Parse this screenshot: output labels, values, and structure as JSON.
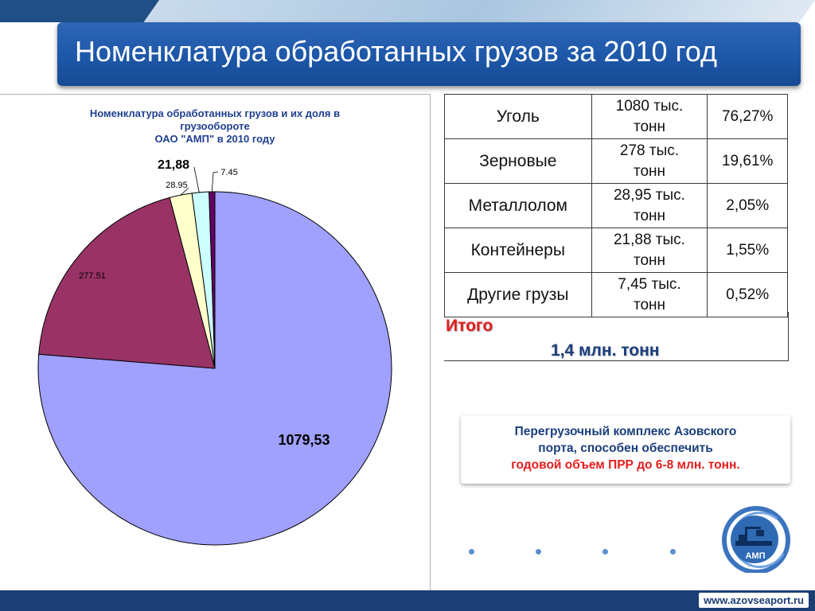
{
  "slide": {
    "title": "Номенклатура обработанных грузов за 2010 год",
    "website": "www.azovseaport.ru"
  },
  "chart_data": {
    "type": "pie",
    "title_lines": [
      "Номенклатура обработанных грузов и их доля в",
      "грузообороте",
      "ОАО \"АМП\" в 2010 году"
    ],
    "slices": [
      {
        "label": "1079,53",
        "value": 1079.53,
        "color": "#a0a0ff"
      },
      {
        "label": "277.51",
        "value": 277.51,
        "color": "#993366"
      },
      {
        "label": "28.95",
        "value": 28.95,
        "color": "#ffffcc"
      },
      {
        "label": "21,88",
        "value": 21.88,
        "color": "#ccffff"
      },
      {
        "label": "7.45",
        "value": 7.45,
        "color": "#660066"
      }
    ]
  },
  "table": {
    "rows": [
      {
        "name": "Уголь",
        "qty_line1": "1080 тыс.",
        "qty_line2": "тонн",
        "share": "76,27%"
      },
      {
        "name": "Зерновые",
        "qty_line1": "278 тыс.",
        "qty_line2": "тонн",
        "share": "19,61%"
      },
      {
        "name": "Металлолом",
        "qty_line1": "28,95 тыс.",
        "qty_line2": "тонн",
        "share": "2,05%"
      },
      {
        "name": "Контейнеры",
        "qty_line1": "21,88 тыс.",
        "qty_line2": "тонн",
        "share": "1,55%"
      },
      {
        "name": "Другие грузы",
        "qty_line1": "7,45 тыс.",
        "qty_line2": "тонн",
        "share": "0,52%"
      }
    ],
    "total_label": "Итого",
    "total_value": "1,4 млн. тонн"
  },
  "info": {
    "line1": "Перегрузочный комплекс Азовского",
    "line2": "порта, способен обеспечить",
    "line3": "годовой объем ПРР до 6-8 млн. тонн."
  },
  "logo": {
    "text": "АМП"
  },
  "colors": {
    "title_bar": "#1d57a8",
    "footer": "#1c3e74",
    "accent_red": "#e41d1d",
    "chart_title": "#1f3f8f"
  }
}
